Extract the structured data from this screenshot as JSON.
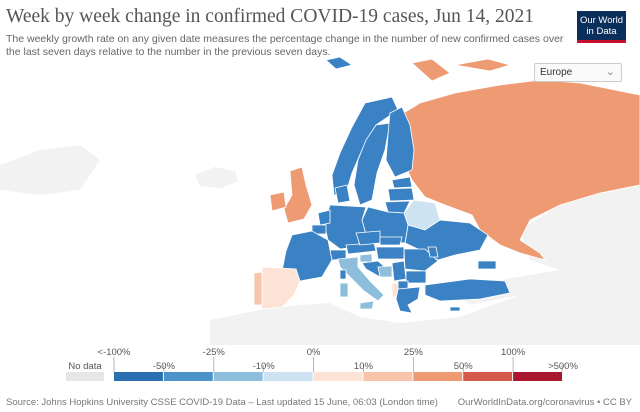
{
  "header": {
    "title": "Week by week change in confirmed COVID-19 cases, Jun 14, 2021",
    "subtitle": "The weekly growth rate on any given date measures the percentage change in the number of new confirmed cases over the last seven days relative to the number in the previous seven days."
  },
  "logo": {
    "line1": "Our World",
    "line2": "in Data"
  },
  "region_select": {
    "value": "Europe"
  },
  "legend": {
    "no_data_label": "No data",
    "no_data_color": "#e6e6e6",
    "top_labels": [
      "<-100%",
      "-25%",
      "0%",
      "25%",
      "100%"
    ],
    "bottom_labels": [
      "-50%",
      "-10%",
      "10%",
      "50%",
      ">500%"
    ],
    "bins": [
      {
        "range": "<-100% to -50%",
        "color": "#2a6fb0"
      },
      {
        "range": "-50% to -25%",
        "color": "#4c93c9"
      },
      {
        "range": "-25% to -10%",
        "color": "#8dbfdd"
      },
      {
        "range": "-10% to 0%",
        "color": "#cde3f1"
      },
      {
        "range": "0% to 10%",
        "color": "#fde3d6"
      },
      {
        "range": "10% to 25%",
        "color": "#f6c5ac"
      },
      {
        "range": "25% to 50%",
        "color": "#ee9a72"
      },
      {
        "range": "50% to 100%",
        "color": "#d45a4a"
      },
      {
        "range": "100% to >500%",
        "color": "#a8172e"
      }
    ]
  },
  "map_colors": {
    "sea": "#ffffff",
    "land_outside": "#f2f2f2",
    "strong_decrease": "#3b82c4",
    "decrease": "#4c93c9",
    "light_decrease": "#8dbfdd",
    "slight_decrease": "#cde3f1",
    "slight_increase": "#fde3d6",
    "increase": "#f6c5ac",
    "large_increase": "#ee9a72"
  },
  "footer": {
    "source": "Source: Johns Hopkins University CSSE COVID-19 Data – Last updated 15 June, 06:03 (London time)",
    "credit": "OurWorldInData.org/coronavirus • CC BY"
  }
}
